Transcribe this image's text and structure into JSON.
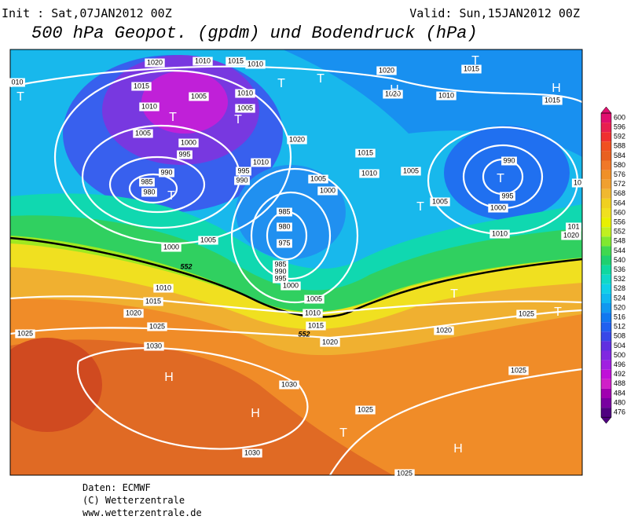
{
  "header": {
    "init": "Init : Sat,07JAN2012 00Z",
    "valid": "Valid: Sun,15JAN2012 00Z",
    "title": "500 hPa Geopot. (gpdm) und Bodendruck (hPa)"
  },
  "map": {
    "isobar_labels": [
      "1020",
      "1010",
      "1015",
      "1010",
      "010",
      "1015",
      "1005",
      "1010",
      "1010",
      "1005",
      "1005",
      "1000",
      "995",
      "1020",
      "1010",
      "995",
      "990",
      "990",
      "985",
      "980",
      "1005",
      "1000",
      "985",
      "980",
      "975",
      "985",
      "990",
      "995",
      "1000",
      "1005",
      "1010",
      "1015",
      "1020",
      "1010",
      "1015",
      "1005",
      "1005",
      "990",
      "995",
      "1000",
      "1010",
      "1020",
      "1020",
      "1010",
      "1015",
      "1015",
      "101",
      "1020",
      "1000",
      "1005",
      "1010",
      "1015",
      "1020",
      "1025",
      "1025",
      "1030",
      "1030",
      "1025",
      "1020",
      "1025",
      "1025",
      "1030",
      "1025",
      "10"
    ],
    "pressure_centers": [
      "T",
      "T",
      "T",
      "T",
      "T",
      "T",
      "H",
      "T",
      "H",
      "T",
      "T",
      "T",
      "T",
      "H",
      "H",
      "T",
      "H"
    ],
    "contour_labels": [
      "552",
      "552"
    ]
  },
  "colorbar": {
    "levels": [
      600,
      596,
      592,
      588,
      584,
      580,
      576,
      572,
      568,
      564,
      560,
      556,
      552,
      548,
      544,
      540,
      536,
      532,
      528,
      524,
      520,
      516,
      512,
      508,
      504,
      500,
      496,
      492,
      488,
      484,
      480,
      476
    ],
    "colors": [
      "#e0106e",
      "#e82050",
      "#f03030",
      "#f05020",
      "#e86020",
      "#f07828",
      "#f09028",
      "#f0a030",
      "#f0b830",
      "#f0d020",
      "#f0e020",
      "#e8f000",
      "#c0f020",
      "#80e830",
      "#40d850",
      "#20d070",
      "#10d8a0",
      "#10d8c8",
      "#10d0e8",
      "#10b8f0",
      "#1098f0",
      "#1078f0",
      "#2060f0",
      "#3848e8",
      "#6030e0",
      "#8028e0",
      "#a020e0",
      "#c010d8",
      "#d020c8",
      "#a000b0",
      "#7800a0",
      "#500080"
    ]
  },
  "footer": [
    "Daten: ECMWF",
    "(C) Wetterzentrale",
    "www.wetterzentrale.de"
  ]
}
